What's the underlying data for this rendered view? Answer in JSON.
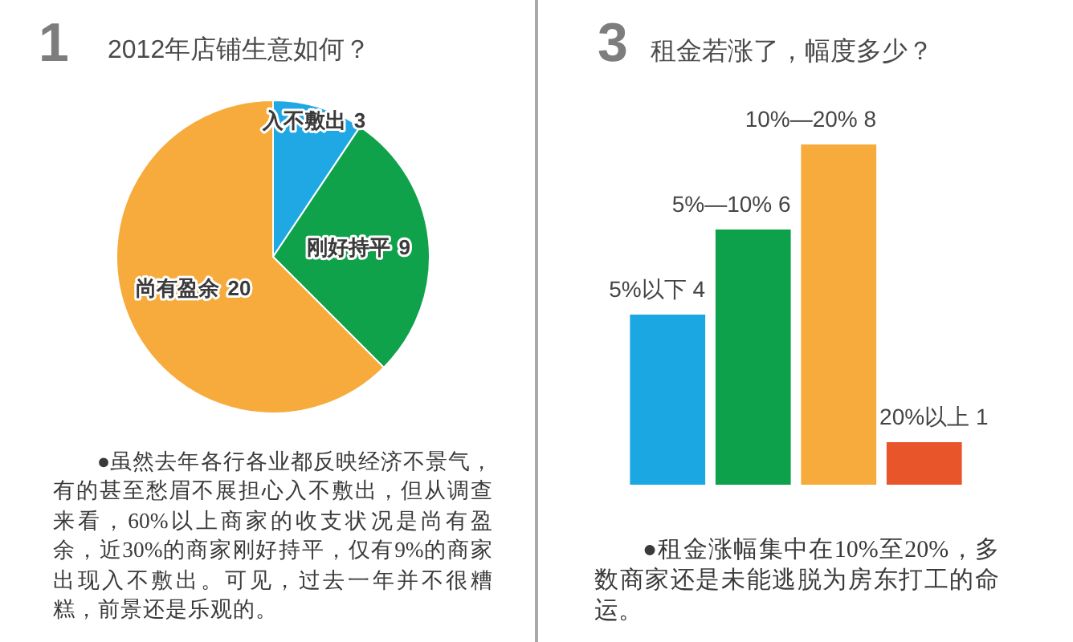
{
  "chart_data": [
    {
      "type": "pie",
      "title": "2012年店铺生意如何？",
      "categories": [
        "入不敷出",
        "刚好持平",
        "尚有盈余"
      ],
      "values": [
        3,
        9,
        20
      ],
      "colors": [
        "#1fa8e4",
        "#10a24b",
        "#f6ab3c"
      ],
      "data_labels": true,
      "annotations": [
        "1",
        "●虽然去年各行各业都反映经济不景气，有的甚至愁眉不展担心入不敷出，但从调查来看，60%以上商家的收支状况是尚有盈余，近30%的商家刚好持平，仅有9%的商家出现入不敷出。可见，过去一年并不很糟糕，前景还是乐观的。"
      ]
    },
    {
      "type": "bar",
      "title": "租金若涨了，幅度多少？",
      "categories": [
        "5%以下",
        "5%—10%",
        "10%—20%",
        "20%以上"
      ],
      "values": [
        4,
        6,
        8,
        1
      ],
      "colors": [
        "#1aa7e2",
        "#0ea14c",
        "#f6ab3c",
        "#e9552b"
      ],
      "data_labels": true,
      "tick_labels": false,
      "annotations": [
        "3",
        "●租金涨幅集中在10%至20%，多数商家还是未能逃脱为房东打工的命运。"
      ]
    }
  ]
}
